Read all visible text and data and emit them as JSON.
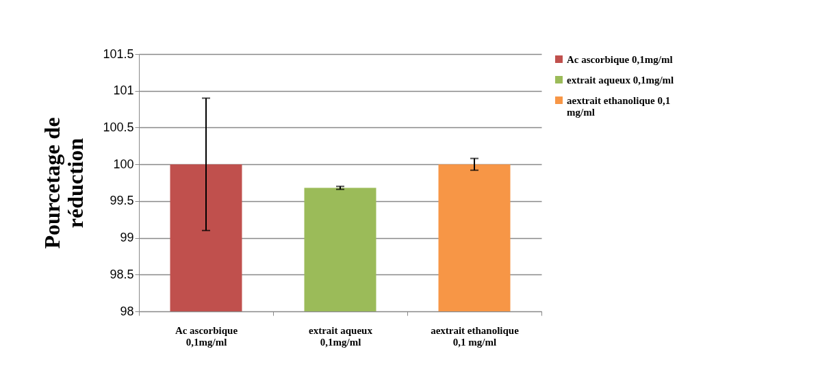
{
  "chart_data": {
    "type": "bar",
    "ylabel": "Pourcetage de\nréduction",
    "categories": [
      "Ac ascorbique\n0,1mg/ml",
      "extrait aqueux\n0,1mg/ml",
      "aextrait ethanolique\n0,1 mg/ml"
    ],
    "series": [
      {
        "name": "Ac ascorbique 0,1mg/ml",
        "color": "#c0504d",
        "values": [
          100,
          null,
          null
        ],
        "errors": [
          0.9,
          null,
          null
        ]
      },
      {
        "name": "extrait aqueux 0,1mg/ml",
        "color": "#9bbb59",
        "values": [
          null,
          99.68,
          null
        ],
        "errors": [
          null,
          0.02,
          null
        ]
      },
      {
        "name": "aextrait ethanolique 0,1\nmg/ml",
        "color": "#f79646",
        "values": [
          null,
          null,
          100
        ],
        "errors": [
          null,
          null,
          0.08
        ]
      }
    ],
    "ylim": [
      98,
      101.5
    ],
    "yticks": [
      98,
      98.5,
      99,
      99.5,
      100,
      100.5,
      101,
      101.5
    ],
    "grid": "y",
    "legend": "right"
  }
}
